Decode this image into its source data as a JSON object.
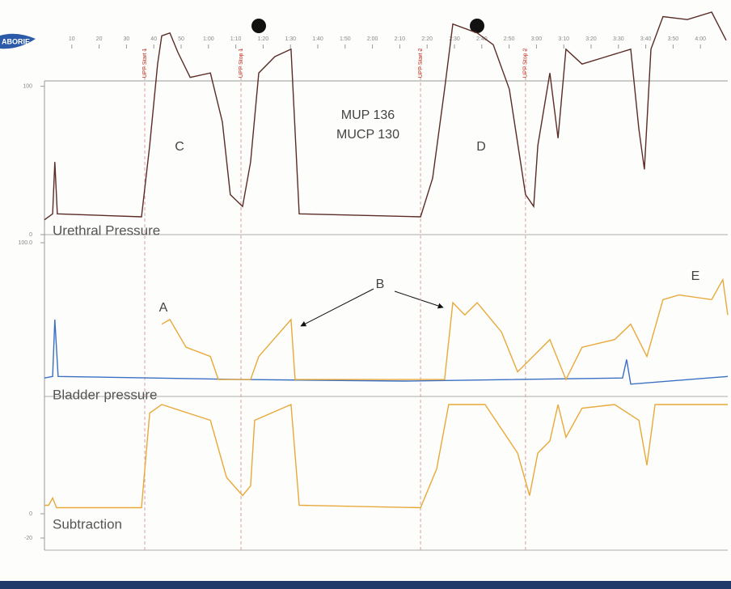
{
  "logo": "ABORIE",
  "chart_data": [
    {
      "type": "line",
      "label": "Urethral Pressure",
      "xlim": [
        0,
        250
      ],
      "ylim": [
        0,
        150
      ],
      "xticks": [
        10,
        20,
        30,
        40,
        50,
        {
          "value": 60,
          "label": "1:00"
        },
        {
          "value": 70,
          "label": "1:10"
        },
        {
          "value": 80,
          "label": "1:20"
        },
        {
          "value": 90,
          "label": "1:30"
        },
        {
          "value": 100,
          "label": "1:40"
        },
        {
          "value": 110,
          "label": "1:50"
        },
        {
          "value": 120,
          "label": "2:00"
        },
        {
          "value": 130,
          "label": "2:10"
        },
        {
          "value": 140,
          "label": "2:20"
        },
        {
          "value": 150,
          "label": "2:30"
        },
        {
          "value": 160,
          "label": "2:40"
        },
        {
          "value": 170,
          "label": "2:50"
        },
        {
          "value": 180,
          "label": "3:00"
        },
        {
          "value": 190,
          "label": "3:10"
        },
        {
          "value": 200,
          "label": "3:20"
        },
        {
          "value": 210,
          "label": "3:30"
        },
        {
          "value": 220,
          "label": "3:40"
        },
        {
          "value": 230,
          "label": "3:50"
        },
        {
          "value": 240,
          "label": "4:00"
        }
      ],
      "yticks": [
        0,
        100
      ],
      "events": [
        {
          "label": "UPP Start 1",
          "x": 36.7
        },
        {
          "label": "UPP Stop 1",
          "x": 71.9
        },
        {
          "label": "UPP Start 2",
          "x": 137.6
        },
        {
          "label": "UPP Stop 2",
          "x": 176.0
        }
      ],
      "annotations": [
        "MUP 136",
        "MUCP 130",
        "C",
        "D"
      ],
      "series": [
        {
          "color": "#5a2c26",
          "x": [
            0,
            3.0,
            3.8,
            4.7,
            35.5,
            38.5,
            41.4,
            42.9,
            45.9,
            48.8,
            53.3,
            60.7,
            65.1,
            68.0,
            72.5,
            75.4,
            78.4,
            84.3,
            90.2,
            93.2,
            137.6,
            142.0,
            146.4,
            149.4,
            158.3,
            164.2,
            170.1,
            176.0,
            179.0,
            180.5,
            184.9,
            187.9,
            190.8,
            196.7,
            205.6,
            214.5,
            217.5,
            219.5,
            221.9,
            226.3,
            235.2,
            244.1,
            249.4
          ],
          "values": [
            10,
            14,
            49,
            14,
            12,
            60,
            115,
            134,
            136,
            123,
            106,
            109,
            76,
            27,
            19,
            49,
            109,
            120,
            125,
            14,
            12,
            38,
            98,
            142,
            136,
            128,
            98,
            27,
            19,
            60,
            109,
            65,
            125,
            115,
            120,
            125,
            71,
            44,
            125,
            147,
            145,
            150,
            131
          ]
        }
      ]
    },
    {
      "type": "line",
      "label": "Bladder pressure",
      "xlim": [
        0,
        250
      ],
      "ylim": [
        0,
        100
      ],
      "yticks": [
        {
          "value": 100,
          "label": "100.0"
        }
      ],
      "annotations": [
        "A",
        "B",
        "E"
      ],
      "series": [
        {
          "color": "#3a6fc4",
          "x": [
            0,
            3.0,
            3.8,
            5.0,
            72.5,
            131.7,
            211.5,
            213.0,
            214.5,
            250
          ],
          "values": [
            12,
            13,
            50,
            13,
            11,
            10,
            12,
            24,
            8,
            13
          ]
        },
        {
          "color": "#e8a93a",
          "x": [
            42.9,
            45.9,
            51.8,
            60.7,
            63.6,
            75.4,
            78.4,
            90.2,
            91.7,
            146.4,
            149.4,
            153.8,
            158.3,
            167.2,
            173.1,
            184.9,
            190.8,
            196.7,
            208.6,
            214.5,
            220.4,
            226.3,
            232.2,
            244.1,
            248.2,
            250
          ],
          "values": [
            47,
            50,
            32,
            26,
            11,
            11,
            26,
            50,
            11,
            11,
            61,
            53,
            61,
            42,
            16,
            37,
            11,
            32,
            37,
            47,
            26,
            63,
            66,
            63,
            76,
            53
          ]
        }
      ]
    },
    {
      "type": "line",
      "label": "Subtraction",
      "xlim": [
        0,
        250
      ],
      "ylim": [
        -30,
        90
      ],
      "yticks": [
        0,
        -20
      ],
      "series": [
        {
          "color": "#e8a93a",
          "x": [
            0,
            1.5,
            3.0,
            4.4,
            35.5,
            38.5,
            42.9,
            60.7,
            66.6,
            72.5,
            75.4,
            76.9,
            90.2,
            93.2,
            137.6,
            143.5,
            147.9,
            161.2,
            173.1,
            177.5,
            180.5,
            184.9,
            187.9,
            190.8,
            196.7,
            208.6,
            217.5,
            220.4,
            223.4,
            250
          ],
          "values": [
            7,
            7,
            13,
            5,
            5,
            83,
            90,
            77,
            30,
            15,
            23,
            77,
            90,
            7,
            5,
            37,
            90,
            90,
            50,
            15,
            50,
            60,
            90,
            63,
            87,
            90,
            77,
            40,
            90,
            90
          ]
        }
      ]
    }
  ]
}
